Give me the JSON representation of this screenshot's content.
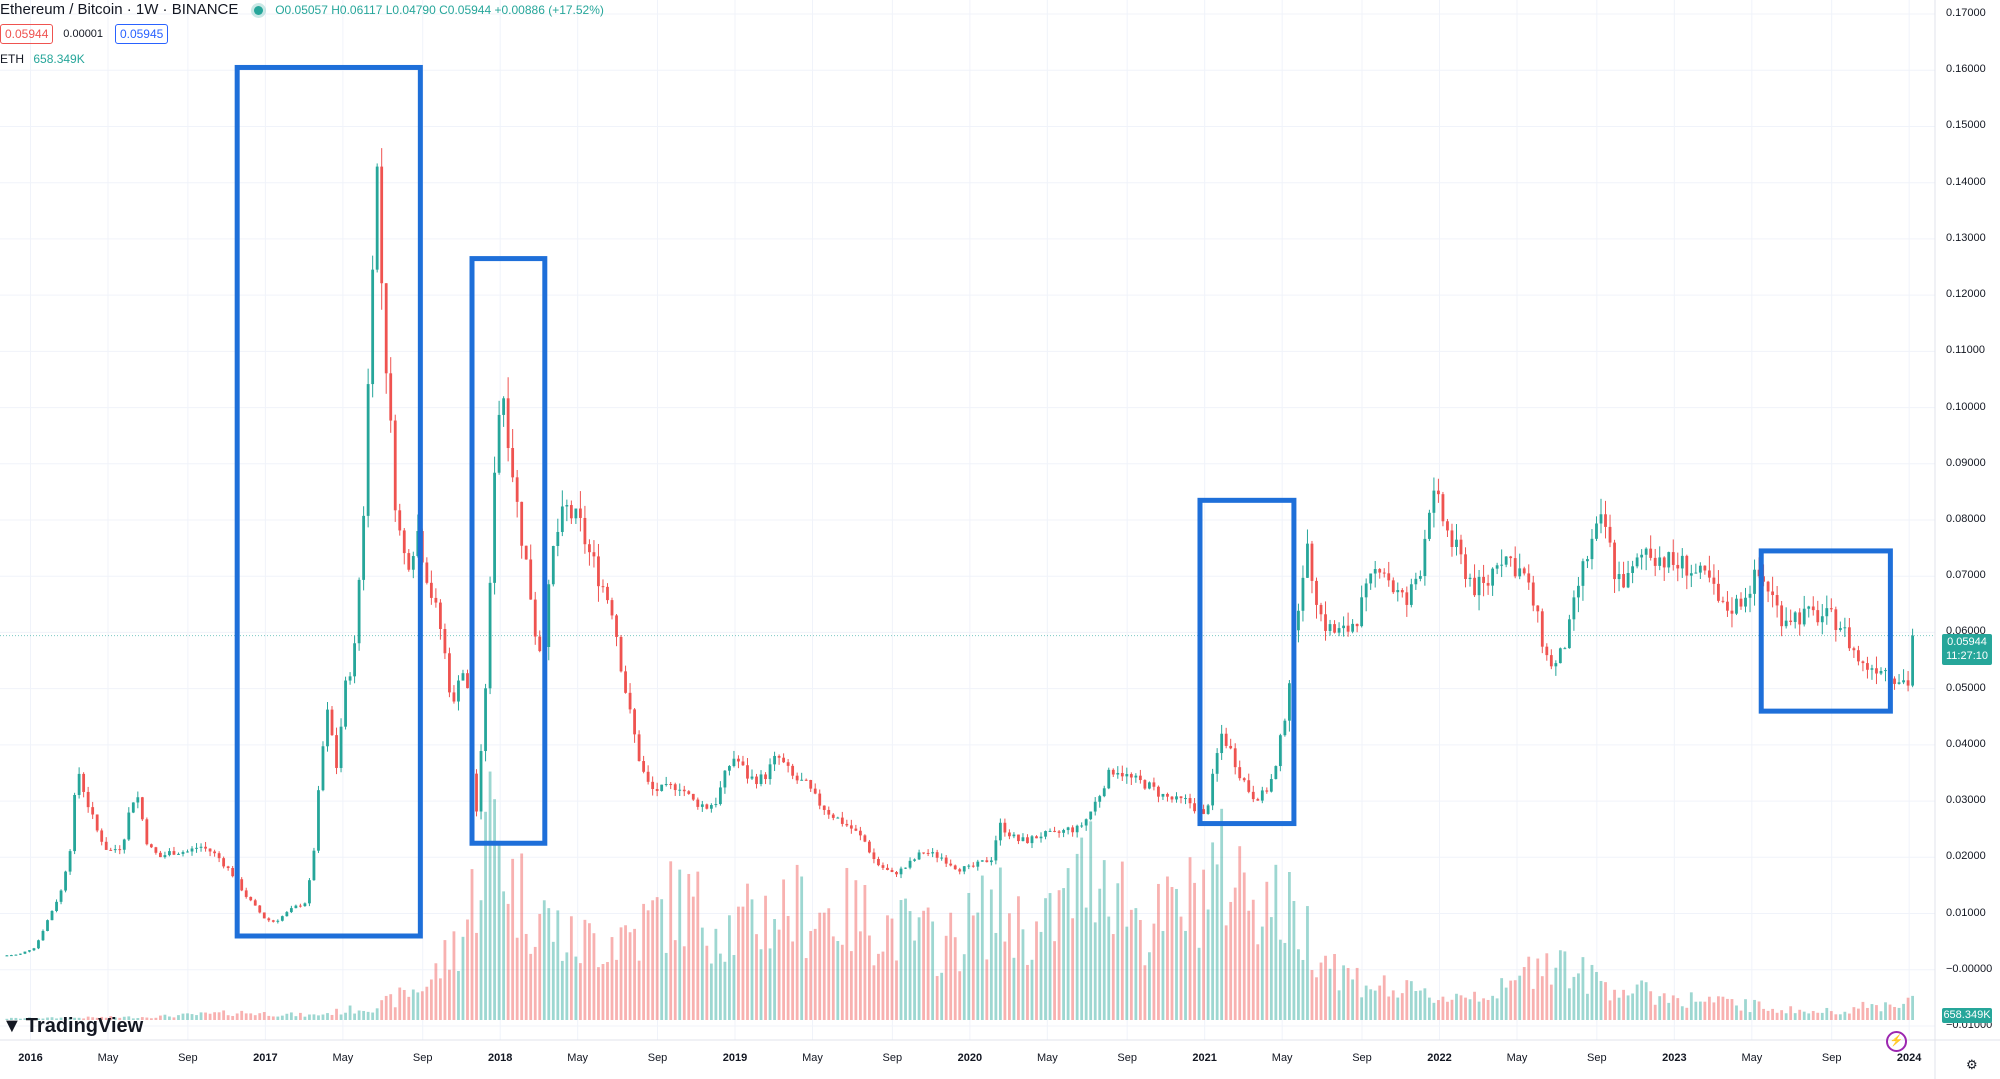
{
  "header": {
    "symbol": "Ethereum / Bitcoin · 1W · BINANCE",
    "ohlc": "O0.05057 H0.06117 L0.04790 C0.05944 +0.00886 (+17.52%)",
    "bid": "0.05944",
    "spread": "0.00001",
    "ask": "0.05945",
    "volume_label": "ETH",
    "volume_value": "658.349K"
  },
  "logo": {
    "text": "TradingView"
  },
  "price_tag": {
    "price": "0.05944",
    "countdown": "11:27:10"
  },
  "volume_tag": "658.349K",
  "colors": {
    "up": "#26a69a",
    "down": "#ef5350",
    "box": "#1e6fd9",
    "grid": "#f0f3fa"
  },
  "icons": [
    "chart-settings-icon",
    "lightning-icon"
  ],
  "chart_data": {
    "type": "candlestick",
    "title": "Ethereum / Bitcoin · 1W · BINANCE",
    "y_ticks": [
      "0.17000",
      "0.16000",
      "0.15000",
      "0.14000",
      "0.13000",
      "0.12000",
      "0.11000",
      "0.10000",
      "0.09000",
      "0.08000",
      "0.07000",
      "0.06000",
      "0.05000",
      "0.04000",
      "0.03000",
      "0.02000",
      "0.01000",
      "−0.00000",
      "−0.01000"
    ],
    "ylim": [
      -0.0125,
      0.1725
    ],
    "x_ticks": [
      {
        "t": 2016.0,
        "label": "2016",
        "bold": true
      },
      {
        "t": 2016.33,
        "label": "May",
        "bold": false
      },
      {
        "t": 2016.67,
        "label": "Sep",
        "bold": false
      },
      {
        "t": 2017.0,
        "label": "2017",
        "bold": true
      },
      {
        "t": 2017.33,
        "label": "May",
        "bold": false
      },
      {
        "t": 2017.67,
        "label": "Sep",
        "bold": false
      },
      {
        "t": 2018.0,
        "label": "2018",
        "bold": true
      },
      {
        "t": 2018.33,
        "label": "May",
        "bold": false
      },
      {
        "t": 2018.67,
        "label": "Sep",
        "bold": false
      },
      {
        "t": 2019.0,
        "label": "2019",
        "bold": true
      },
      {
        "t": 2019.33,
        "label": "May",
        "bold": false
      },
      {
        "t": 2019.67,
        "label": "Sep",
        "bold": false
      },
      {
        "t": 2020.0,
        "label": "2020",
        "bold": true
      },
      {
        "t": 2020.33,
        "label": "May",
        "bold": false
      },
      {
        "t": 2020.67,
        "label": "Sep",
        "bold": false
      },
      {
        "t": 2021.0,
        "label": "2021",
        "bold": true
      },
      {
        "t": 2021.33,
        "label": "May",
        "bold": false
      },
      {
        "t": 2021.67,
        "label": "Sep",
        "bold": false
      },
      {
        "t": 2022.0,
        "label": "2022",
        "bold": true
      },
      {
        "t": 2022.33,
        "label": "May",
        "bold": false
      },
      {
        "t": 2022.67,
        "label": "Sep",
        "bold": false
      },
      {
        "t": 2023.0,
        "label": "2023",
        "bold": true
      },
      {
        "t": 2023.33,
        "label": "May",
        "bold": false
      },
      {
        "t": 2023.67,
        "label": "Sep",
        "bold": false
      },
      {
        "t": 2024.0,
        "label": "2024",
        "bold": true
      }
    ],
    "xlim": [
      2015.87,
      2024.11
    ],
    "close_path": [
      [
        2015.88,
        0.0025
      ],
      [
        2015.95,
        0.0027
      ],
      [
        2016.02,
        0.004
      ],
      [
        2016.08,
        0.0095
      ],
      [
        2016.13,
        0.014
      ],
      [
        2016.17,
        0.022
      ],
      [
        2016.2,
        0.036
      ],
      [
        2016.24,
        0.03
      ],
      [
        2016.28,
        0.025
      ],
      [
        2016.33,
        0.021
      ],
      [
        2016.39,
        0.022
      ],
      [
        2016.42,
        0.028
      ],
      [
        2016.45,
        0.032
      ],
      [
        2016.5,
        0.022
      ],
      [
        2016.55,
        0.02
      ],
      [
        2016.6,
        0.021
      ],
      [
        2016.67,
        0.021
      ],
      [
        2016.72,
        0.022
      ],
      [
        2016.77,
        0.021
      ],
      [
        2016.8,
        0.02
      ],
      [
        2016.86,
        0.017
      ],
      [
        2016.92,
        0.013
      ],
      [
        2017.0,
        0.009
      ],
      [
        2017.04,
        0.0085
      ],
      [
        2017.12,
        0.011
      ],
      [
        2017.17,
        0.012
      ],
      [
        2017.2,
        0.018
      ],
      [
        2017.24,
        0.038
      ],
      [
        2017.27,
        0.047
      ],
      [
        2017.3,
        0.035
      ],
      [
        2017.34,
        0.05
      ],
      [
        2017.38,
        0.057
      ],
      [
        2017.42,
        0.083
      ],
      [
        2017.45,
        0.118
      ],
      [
        2017.47,
        0.148
      ],
      [
        2017.5,
        0.118
      ],
      [
        2017.53,
        0.098
      ],
      [
        2017.56,
        0.08
      ],
      [
        2017.6,
        0.072
      ],
      [
        2017.65,
        0.078
      ],
      [
        2017.7,
        0.068
      ],
      [
        2017.75,
        0.06
      ],
      [
        2017.8,
        0.046
      ],
      [
        2017.83,
        0.055
      ],
      [
        2017.86,
        0.05
      ],
      [
        2017.88,
        0.035
      ],
      [
        2017.9,
        0.028
      ],
      [
        2017.93,
        0.044
      ],
      [
        2017.96,
        0.07
      ],
      [
        2017.98,
        0.095
      ],
      [
        2018.01,
        0.104
      ],
      [
        2018.05,
        0.09
      ],
      [
        2018.08,
        0.08
      ],
      [
        2018.12,
        0.07
      ],
      [
        2018.15,
        0.06
      ],
      [
        2018.18,
        0.056
      ],
      [
        2018.23,
        0.076
      ],
      [
        2018.28,
        0.082
      ],
      [
        2018.34,
        0.079
      ],
      [
        2018.38,
        0.074
      ],
      [
        2018.42,
        0.07
      ],
      [
        2018.48,
        0.064
      ],
      [
        2018.52,
        0.053
      ],
      [
        2018.55,
        0.046
      ],
      [
        2018.6,
        0.036
      ],
      [
        2018.64,
        0.032
      ],
      [
        2018.7,
        0.032
      ],
      [
        2018.76,
        0.033
      ],
      [
        2018.82,
        0.03
      ],
      [
        2018.88,
        0.029
      ],
      [
        2018.92,
        0.03
      ],
      [
        2018.97,
        0.036
      ],
      [
        2019.0,
        0.038
      ],
      [
        2019.06,
        0.034
      ],
      [
        2019.12,
        0.034
      ],
      [
        2019.18,
        0.038
      ],
      [
        2019.25,
        0.034
      ],
      [
        2019.3,
        0.033
      ],
      [
        2019.35,
        0.03
      ],
      [
        2019.4,
        0.028
      ],
      [
        2019.5,
        0.025
      ],
      [
        2019.55,
        0.023
      ],
      [
        2019.6,
        0.019
      ],
      [
        2019.67,
        0.017
      ],
      [
        2019.72,
        0.018
      ],
      [
        2019.8,
        0.021
      ],
      [
        2019.88,
        0.02
      ],
      [
        2019.95,
        0.018
      ],
      [
        2020.0,
        0.018
      ],
      [
        2020.05,
        0.019
      ],
      [
        2020.1,
        0.02
      ],
      [
        2020.12,
        0.026
      ],
      [
        2020.15,
        0.025
      ],
      [
        2020.2,
        0.023
      ],
      [
        2020.25,
        0.023
      ],
      [
        2020.3,
        0.024
      ],
      [
        2020.36,
        0.024
      ],
      [
        2020.42,
        0.025
      ],
      [
        2020.46,
        0.025
      ],
      [
        2020.5,
        0.027
      ],
      [
        2020.55,
        0.031
      ],
      [
        2020.58,
        0.034
      ],
      [
        2020.62,
        0.036
      ],
      [
        2020.68,
        0.034
      ],
      [
        2020.75,
        0.033
      ],
      [
        2020.82,
        0.031
      ],
      [
        2020.88,
        0.03
      ],
      [
        2020.93,
        0.03
      ],
      [
        2020.98,
        0.028
      ],
      [
        2021.0,
        0.027
      ],
      [
        2021.03,
        0.033
      ],
      [
        2021.07,
        0.042
      ],
      [
        2021.1,
        0.04
      ],
      [
        2021.15,
        0.035
      ],
      [
        2021.2,
        0.031
      ],
      [
        2021.25,
        0.031
      ],
      [
        2021.3,
        0.035
      ],
      [
        2021.34,
        0.045
      ],
      [
        2021.37,
        0.055
      ],
      [
        2021.4,
        0.066
      ],
      [
        2021.43,
        0.075
      ],
      [
        2021.46,
        0.07
      ],
      [
        2021.5,
        0.062
      ],
      [
        2021.55,
        0.06
      ],
      [
        2021.6,
        0.06
      ],
      [
        2021.65,
        0.063
      ],
      [
        2021.7,
        0.068
      ],
      [
        2021.75,
        0.073
      ],
      [
        2021.8,
        0.068
      ],
      [
        2021.86,
        0.065
      ],
      [
        2021.92,
        0.072
      ],
      [
        2021.96,
        0.084
      ],
      [
        2022.0,
        0.082
      ],
      [
        2022.04,
        0.077
      ],
      [
        2022.1,
        0.072
      ],
      [
        2022.15,
        0.068
      ],
      [
        2022.2,
        0.068
      ],
      [
        2022.25,
        0.074
      ],
      [
        2022.3,
        0.073
      ],
      [
        2022.36,
        0.07
      ],
      [
        2022.4,
        0.065
      ],
      [
        2022.46,
        0.055
      ],
      [
        2022.5,
        0.054
      ],
      [
        2022.55,
        0.06
      ],
      [
        2022.6,
        0.07
      ],
      [
        2022.66,
        0.077
      ],
      [
        2022.7,
        0.08
      ],
      [
        2022.75,
        0.07
      ],
      [
        2022.8,
        0.069
      ],
      [
        2022.88,
        0.075
      ],
      [
        2022.95,
        0.073
      ],
      [
        2023.0,
        0.072
      ],
      [
        2023.05,
        0.072
      ],
      [
        2023.1,
        0.07
      ],
      [
        2023.15,
        0.069
      ],
      [
        2023.2,
        0.064
      ],
      [
        2023.27,
        0.065
      ],
      [
        2023.33,
        0.069
      ],
      [
        2023.36,
        0.07
      ],
      [
        2023.4,
        0.068
      ],
      [
        2023.45,
        0.063
      ],
      [
        2023.55,
        0.063
      ],
      [
        2023.62,
        0.063
      ],
      [
        2023.7,
        0.062
      ],
      [
        2023.76,
        0.057
      ],
      [
        2023.8,
        0.054
      ],
      [
        2023.88,
        0.054
      ],
      [
        2023.95,
        0.052
      ],
      [
        2024.0,
        0.051
      ],
      [
        2024.02,
        0.0594
      ]
    ],
    "volume_path": [
      [
        2015.88,
        0.0002
      ],
      [
        2016.5,
        0.0004
      ],
      [
        2016.9,
        0.001
      ],
      [
        2017.2,
        0.0006
      ],
      [
        2017.5,
        0.002
      ],
      [
        2017.7,
        0.005
      ],
      [
        2017.85,
        0.012
      ],
      [
        2017.97,
        0.028
      ],
      [
        2018.05,
        0.018
      ],
      [
        2018.3,
        0.01
      ],
      [
        2018.6,
        0.012
      ],
      [
        2018.75,
        0.016
      ],
      [
        2019.0,
        0.012
      ],
      [
        2019.2,
        0.015
      ],
      [
        2019.5,
        0.014
      ],
      [
        2019.7,
        0.012
      ],
      [
        2019.9,
        0.01
      ],
      [
        2020.1,
        0.015
      ],
      [
        2020.3,
        0.011
      ],
      [
        2020.55,
        0.022
      ],
      [
        2020.75,
        0.012
      ],
      [
        2020.95,
        0.016
      ],
      [
        2021.05,
        0.02
      ],
      [
        2021.2,
        0.018
      ],
      [
        2021.4,
        0.013
      ],
      [
        2021.6,
        0.006
      ],
      [
        2021.8,
        0.004
      ],
      [
        2022.0,
        0.003
      ],
      [
        2022.3,
        0.004
      ],
      [
        2022.45,
        0.009
      ],
      [
        2022.6,
        0.006
      ],
      [
        2022.8,
        0.004
      ],
      [
        2023.0,
        0.003
      ],
      [
        2023.3,
        0.002
      ],
      [
        2023.6,
        0.001
      ],
      [
        2023.9,
        0.002
      ],
      [
        2024.02,
        0.003
      ]
    ],
    "volume_scale": 0.04,
    "annotation_boxes": [
      {
        "t0": 2016.88,
        "t1": 2017.66,
        "v0": 0.1605,
        "v1": 0.006
      },
      {
        "t0": 2017.88,
        "t1": 2018.19,
        "v0": 0.1265,
        "v1": 0.0225
      },
      {
        "t0": 2020.98,
        "t1": 2021.38,
        "v0": 0.0835,
        "v1": 0.026
      },
      {
        "t0": 2023.37,
        "t1": 2023.92,
        "v0": 0.0745,
        "v1": 0.046
      }
    ],
    "current_price": 0.05944
  }
}
